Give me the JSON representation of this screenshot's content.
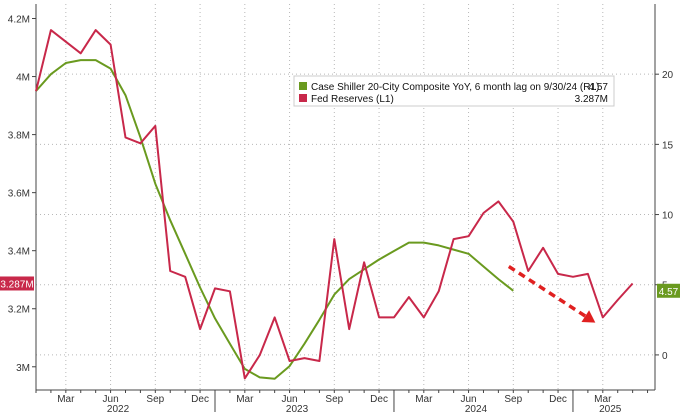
{
  "chart_data": {
    "type": "line",
    "title": "",
    "grid": true,
    "legend_position": "top-right",
    "colors": {
      "case_shiller": "#6a9a1f",
      "fed_reserves": "#c8284a",
      "arrow": "#e02020"
    },
    "y_left": {
      "range": [
        2.92,
        4.25
      ],
      "ticks": [
        3,
        3.2,
        3.4,
        3.6,
        3.8,
        4,
        4.2
      ],
      "tick_labels": [
        "3M",
        "3.2M",
        "3.4M",
        "3.6M",
        "3.8M",
        "4M",
        "4.2M"
      ]
    },
    "y_right": {
      "range": [
        -2.5,
        25
      ],
      "ticks": [
        0,
        5,
        10,
        15,
        20
      ],
      "tick_labels": [
        "0",
        "5",
        "10",
        "15",
        "20"
      ]
    },
    "x_months": [
      {
        "m": 0,
        "label": "Mar"
      },
      {
        "m": 3,
        "label": "Jun"
      },
      {
        "m": 6,
        "label": "Sep"
      },
      {
        "m": 9,
        "label": "Dec"
      },
      {
        "m": 12,
        "label": "Mar"
      },
      {
        "m": 15,
        "label": "Jun"
      },
      {
        "m": 18,
        "label": "Sep"
      },
      {
        "m": 21,
        "label": "Dec"
      },
      {
        "m": 24,
        "label": "Mar"
      },
      {
        "m": 27,
        "label": "Jun"
      },
      {
        "m": 30,
        "label": "Sep"
      },
      {
        "m": 33,
        "label": "Dec"
      },
      {
        "m": 36,
        "label": "Mar"
      }
    ],
    "x_years": [
      {
        "m": 3.5,
        "label": "2022"
      },
      {
        "m": 15.5,
        "label": "2023"
      },
      {
        "m": 27.5,
        "label": "2024"
      },
      {
        "m": 36.5,
        "label": "2025"
      }
    ],
    "x_range": [
      -2,
      39.5
    ],
    "series": [
      {
        "name": "Case Shiller 20-City Composite YoY, 6 month lag on 9/30/24 (R1)",
        "last_value": "4.57",
        "axis": "right",
        "x": [
          -2,
          -1,
          0,
          1,
          2,
          3,
          4,
          5,
          6,
          7,
          8,
          9,
          10,
          11,
          12,
          13,
          14,
          15,
          16,
          17,
          18,
          19,
          20,
          21,
          22,
          23,
          24,
          25,
          26,
          27,
          28,
          29,
          30
        ],
        "y": [
          18.8,
          20,
          20.8,
          21,
          21,
          20.4,
          18.5,
          15.5,
          12.2,
          9.6,
          7.2,
          4.8,
          2.6,
          0.8,
          -1,
          -1.6,
          -1.7,
          -0.8,
          0.8,
          2.5,
          4.3,
          5.4,
          6.1,
          6.8,
          7.4,
          8,
          8,
          7.8,
          7.5,
          7.2,
          6.3,
          5.4,
          4.57
        ]
      },
      {
        "name": "Fed Reserves (L1)",
        "last_value": "3.287M",
        "axis": "left",
        "x": [
          -2,
          -1,
          0,
          1,
          2,
          3,
          4,
          5,
          6,
          7,
          8,
          9,
          10,
          11,
          12,
          13,
          14,
          15,
          16,
          17,
          18,
          19,
          20,
          21,
          22,
          23,
          24,
          25,
          26,
          27,
          28,
          29,
          30,
          31,
          32,
          33,
          34,
          35,
          36,
          37,
          38
        ],
        "y": [
          3.95,
          4.16,
          4.12,
          4.08,
          4.16,
          4.11,
          3.79,
          3.77,
          3.83,
          3.33,
          3.31,
          3.13,
          3.27,
          3.26,
          2.96,
          3.04,
          3.17,
          3.02,
          3.03,
          3.02,
          3.44,
          3.13,
          3.36,
          3.17,
          3.17,
          3.24,
          3.17,
          3.26,
          3.44,
          3.45,
          3.53,
          3.57,
          3.5,
          3.33,
          3.41,
          3.32,
          3.31,
          3.32,
          3.17,
          3.23,
          3.287
        ]
      }
    ],
    "axis_tags": {
      "left": "3.287M",
      "right": "4.57"
    },
    "annotation": {
      "type": "dashed-arrow",
      "from": {
        "x": 29.7,
        "y": 6.3
      },
      "to": {
        "x": 35.5,
        "y": 2.3
      },
      "axis": "right"
    }
  }
}
